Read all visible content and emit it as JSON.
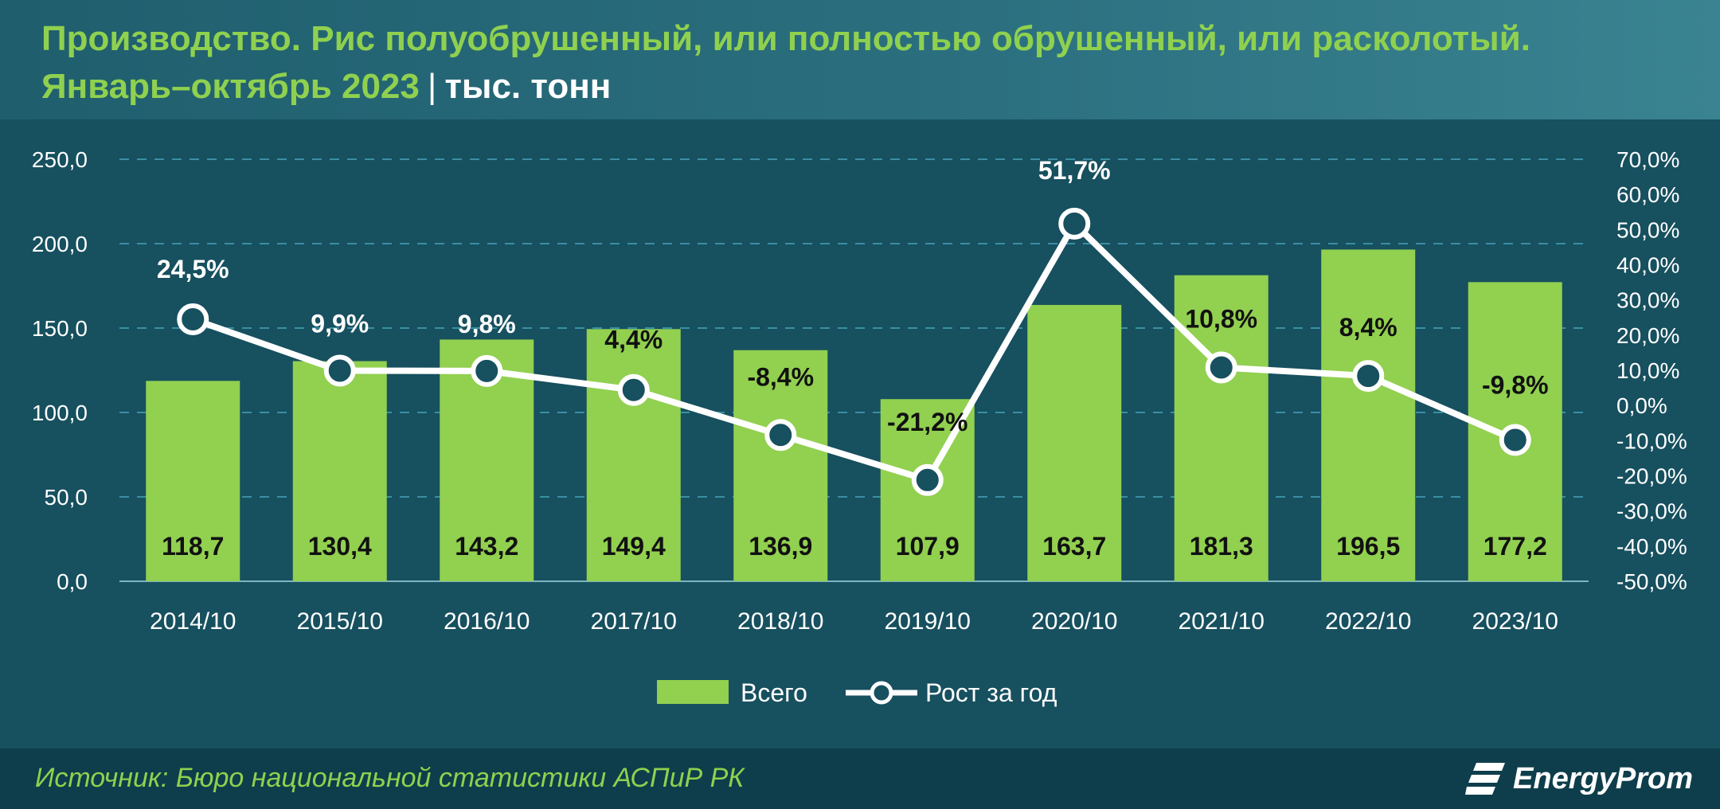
{
  "header": {
    "title_line1": "Производство. Рис полуобрушенный, или полностью обрушенный, или расколотый.",
    "title_line2": "Январь–октябрь 2023",
    "separator": "|",
    "unit": "тыс. тонн"
  },
  "footer": {
    "source": "Источник: Бюро национальной статистики АСПиР РК",
    "logo_text": "EnergyProm",
    "logo_icon": "energyprom-logo-icon"
  },
  "colors": {
    "background": "#17505f",
    "bar": "#92d050",
    "line": "#ffffff",
    "title": "#8fd14f",
    "grid": "#3a8fa3"
  },
  "chart_data": {
    "type": "bar",
    "categories": [
      "2014/10",
      "2015/10",
      "2016/10",
      "2017/10",
      "2018/10",
      "2019/10",
      "2020/10",
      "2021/10",
      "2022/10",
      "2023/10"
    ],
    "series": [
      {
        "name": "Всего",
        "type": "bar",
        "axis": "left",
        "values": [
          118.7,
          130.4,
          143.2,
          149.4,
          136.9,
          107.9,
          163.7,
          181.3,
          196.5,
          177.2
        ],
        "labels": [
          "118,7",
          "130,4",
          "143,2",
          "149,4",
          "136,9",
          "107,9",
          "163,7",
          "181,3",
          "196,5",
          "177,2"
        ]
      },
      {
        "name": "Рост за год",
        "type": "line",
        "axis": "right",
        "values": [
          24.5,
          9.9,
          9.8,
          4.4,
          -8.4,
          -21.2,
          51.7,
          10.8,
          8.4,
          -9.8
        ],
        "labels": [
          "24,5%",
          "9,9%",
          "9,8%",
          "4,4%",
          "-8,4%",
          "-21,2%",
          "51,7%",
          "10,8%",
          "8,4%",
          "-9,8%"
        ]
      }
    ],
    "y_left": {
      "ylim": [
        0,
        250
      ],
      "ticks": [
        "0,0",
        "50,0",
        "100,0",
        "150,0",
        "200,0",
        "250,0"
      ]
    },
    "y_right": {
      "ylim": [
        -50,
        70
      ],
      "ticks": [
        "-50,0%",
        "-40,0%",
        "-30,0%",
        "-20,0%",
        "-10,0%",
        "0,0%",
        "10,0%",
        "20,0%",
        "30,0%",
        "40,0%",
        "50,0%",
        "60,0%",
        "70,0%"
      ]
    },
    "grid": true,
    "legend_position": "bottom"
  }
}
